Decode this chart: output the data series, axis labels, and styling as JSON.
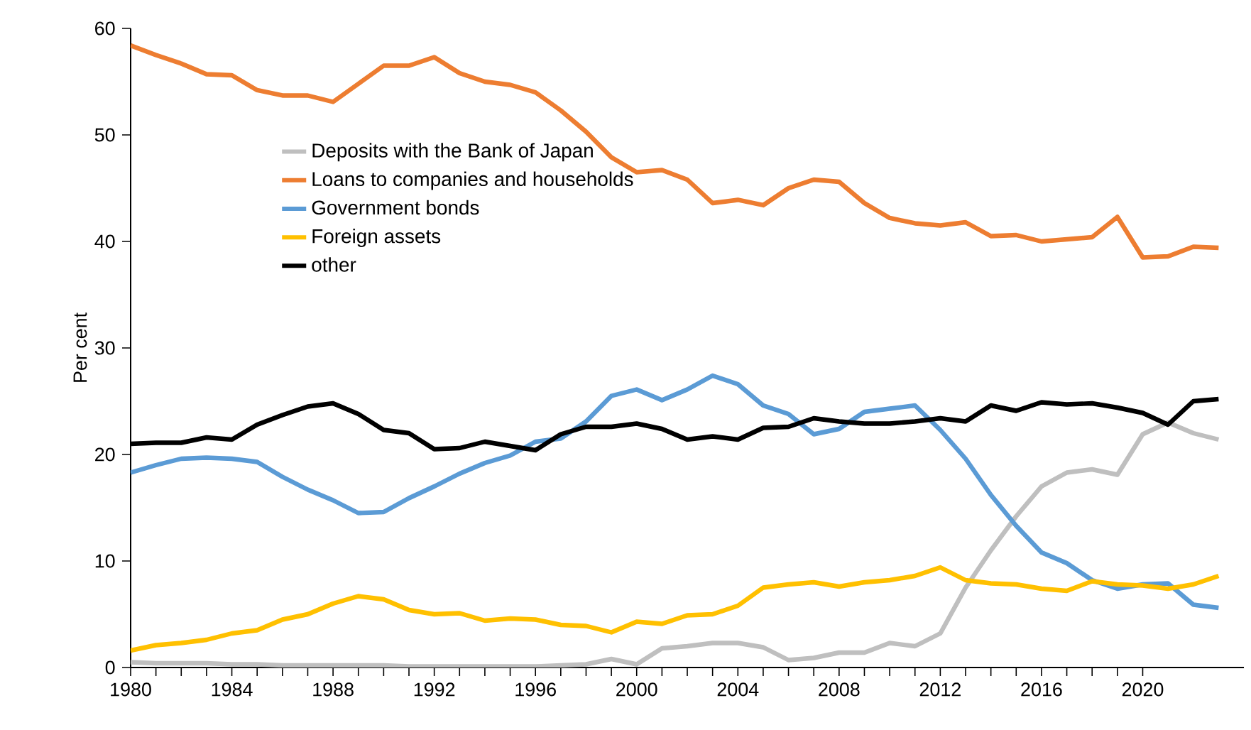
{
  "chart_data": {
    "type": "line",
    "ylabel": "Per cent",
    "x": [
      1980,
      1981,
      1982,
      1983,
      1984,
      1985,
      1986,
      1987,
      1988,
      1989,
      1990,
      1991,
      1992,
      1993,
      1994,
      1995,
      1996,
      1997,
      1998,
      1999,
      2000,
      2001,
      2002,
      2003,
      2004,
      2005,
      2006,
      2007,
      2008,
      2009,
      2010,
      2011,
      2012,
      2013,
      2014,
      2015,
      2016,
      2017,
      2018,
      2019,
      2020,
      2021,
      2022,
      2023
    ],
    "xlim": [
      1980,
      2024
    ],
    "xticks": [
      1980,
      1984,
      1988,
      1992,
      1996,
      2000,
      2004,
      2008,
      2012,
      2016,
      2020
    ],
    "ylim": [
      0,
      60
    ],
    "yticks": [
      0,
      10,
      20,
      30,
      40,
      50,
      60
    ],
    "legend": "left",
    "grid": false,
    "marker": "none",
    "line_style": "solid",
    "series": [
      {
        "name": "Deposits with the Bank of Japan",
        "color": "#bfbfbf",
        "values": [
          0.5,
          0.4,
          0.4,
          0.4,
          0.3,
          0.3,
          0.2,
          0.2,
          0.2,
          0.2,
          0.2,
          0.1,
          0.1,
          0.1,
          0.1,
          0.1,
          0.1,
          0.2,
          0.3,
          0.8,
          0.3,
          1.8,
          2.0,
          2.3,
          2.3,
          1.9,
          0.7,
          0.9,
          1.4,
          1.4,
          2.3,
          2.0,
          3.2,
          7.5,
          11.0,
          14.2,
          17.0,
          18.3,
          18.6,
          18.1,
          21.9,
          23.0,
          22.0,
          21.4
        ]
      },
      {
        "name": "Loans to companies and households",
        "color": "#ed7d31",
        "values": [
          58.4,
          57.5,
          56.7,
          55.7,
          55.6,
          54.2,
          53.7,
          53.7,
          53.1,
          54.8,
          56.5,
          56.5,
          57.3,
          55.8,
          55.0,
          54.7,
          54.0,
          52.3,
          50.3,
          47.9,
          46.5,
          46.7,
          45.8,
          43.6,
          43.9,
          43.4,
          45.0,
          45.8,
          45.6,
          43.6,
          42.2,
          41.7,
          41.5,
          41.8,
          40.5,
          40.6,
          40.0,
          40.2,
          40.4,
          42.3,
          38.5,
          38.6,
          39.5,
          39.4
        ]
      },
      {
        "name": "Government bonds",
        "color": "#5b9bd5",
        "values": [
          18.3,
          19.0,
          19.6,
          19.7,
          19.6,
          19.3,
          17.9,
          16.7,
          15.7,
          14.5,
          14.6,
          15.9,
          17.0,
          18.2,
          19.2,
          19.9,
          21.2,
          21.5,
          23.1,
          25.5,
          26.1,
          25.1,
          26.1,
          27.4,
          26.6,
          24.6,
          23.8,
          21.9,
          22.4,
          24.0,
          24.3,
          24.6,
          22.3,
          19.6,
          16.2,
          13.3,
          10.8,
          9.8,
          8.2,
          7.4,
          7.8,
          7.9,
          5.9,
          5.6
        ]
      },
      {
        "name": "Foreign assets",
        "color": "#ffc000",
        "values": [
          1.6,
          2.1,
          2.3,
          2.6,
          3.2,
          3.5,
          4.5,
          5.0,
          6.0,
          6.7,
          6.4,
          5.4,
          5.0,
          5.1,
          4.4,
          4.6,
          4.5,
          4.0,
          3.9,
          3.3,
          4.3,
          4.1,
          4.9,
          5.0,
          5.8,
          7.5,
          7.8,
          8.0,
          7.6,
          8.0,
          8.2,
          8.6,
          9.4,
          8.2,
          7.9,
          7.8,
          7.4,
          7.2,
          8.1,
          7.8,
          7.7,
          7.4,
          7.8,
          8.6
        ]
      },
      {
        "name": "other",
        "color": "#000000",
        "values": [
          21.0,
          21.1,
          21.1,
          21.6,
          21.4,
          22.8,
          23.7,
          24.5,
          24.8,
          23.8,
          22.3,
          22.0,
          20.5,
          20.6,
          21.2,
          20.8,
          20.4,
          21.9,
          22.6,
          22.6,
          22.9,
          22.4,
          21.4,
          21.7,
          21.4,
          22.5,
          22.6,
          23.4,
          23.1,
          22.9,
          22.9,
          23.1,
          23.4,
          23.1,
          24.6,
          24.1,
          24.9,
          24.7,
          24.8,
          24.4,
          23.9,
          22.8,
          25.0,
          25.2
        ]
      }
    ]
  }
}
